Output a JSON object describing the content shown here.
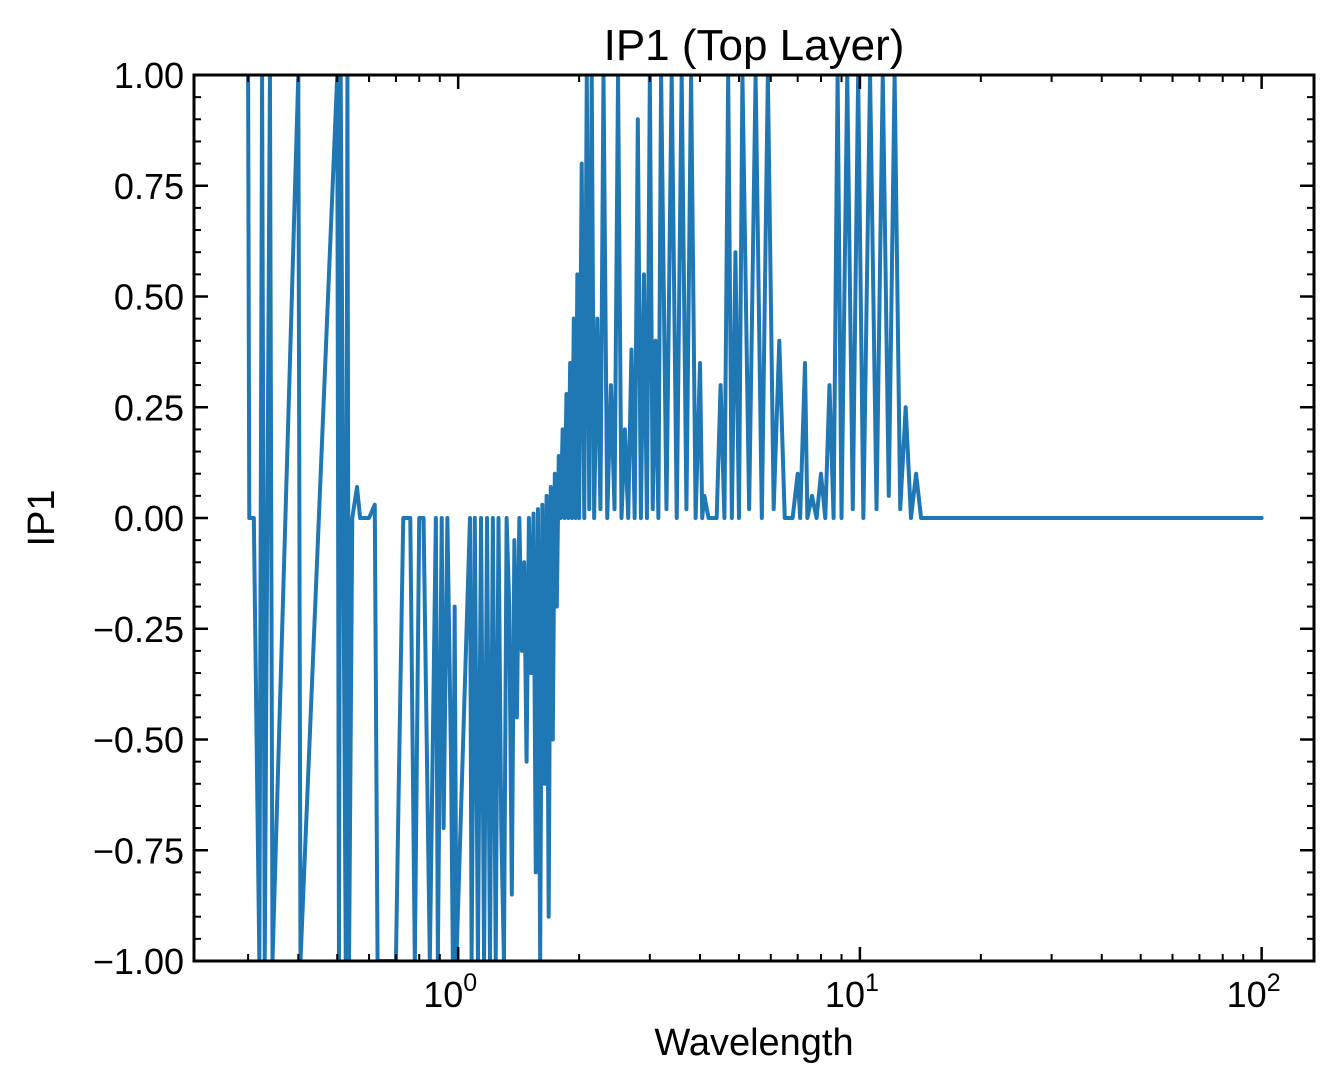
{
  "chart_data": {
    "type": "line",
    "title": "IP1 (Top Layer)",
    "xlabel": "Wavelength",
    "ylabel": "IP1",
    "x_scale": "log",
    "xlim": [
      0.22,
      135
    ],
    "ylim": [
      -1.0,
      1.0
    ],
    "grid": false,
    "legend": "none",
    "line_color": "#1f77b4",
    "x_ticks": [
      {
        "value": 1,
        "base": "10",
        "exp": "0"
      },
      {
        "value": 10,
        "base": "10",
        "exp": "1"
      },
      {
        "value": 100,
        "base": "10",
        "exp": "2"
      }
    ],
    "y_ticks": [
      {
        "value": 1.0,
        "label": "1.00"
      },
      {
        "value": 0.75,
        "label": "0.75"
      },
      {
        "value": 0.5,
        "label": "0.50"
      },
      {
        "value": 0.25,
        "label": "0.25"
      },
      {
        "value": 0.0,
        "label": "0.00"
      },
      {
        "value": -0.25,
        "label": "−0.25"
      },
      {
        "value": -0.5,
        "label": "−0.50"
      },
      {
        "value": -0.75,
        "label": "−0.75"
      },
      {
        "value": -1.0,
        "label": "−1.00"
      }
    ],
    "series": [
      {
        "values": [
          [
            0.3,
            1.0
          ],
          [
            0.302,
            0.0
          ],
          [
            0.31,
            0.0
          ],
          [
            0.32,
            -1.0
          ],
          [
            0.325,
            1.0
          ],
          [
            0.33,
            -1.0
          ],
          [
            0.34,
            1.0
          ],
          [
            0.345,
            -1.0
          ],
          [
            0.4,
            1.0
          ],
          [
            0.405,
            -1.0
          ],
          [
            0.5,
            1.0
          ],
          [
            0.505,
            -1.0
          ],
          [
            0.51,
            1.0
          ],
          [
            0.525,
            -1.0
          ],
          [
            0.53,
            1.0
          ],
          [
            0.535,
            -1.0
          ],
          [
            0.545,
            0.0
          ],
          [
            0.56,
            0.07
          ],
          [
            0.57,
            0.0
          ],
          [
            0.6,
            0.0
          ],
          [
            0.62,
            0.03
          ],
          [
            0.63,
            -1.0
          ],
          [
            0.7,
            -1.0
          ],
          [
            0.71,
            -0.65
          ],
          [
            0.73,
            0.0
          ],
          [
            0.76,
            0.0
          ],
          [
            0.78,
            -1.0
          ],
          [
            0.8,
            0.0
          ],
          [
            0.82,
            0.0
          ],
          [
            0.85,
            -1.0
          ],
          [
            0.88,
            0.0
          ],
          [
            0.89,
            -1.0
          ],
          [
            0.91,
            0.0
          ],
          [
            0.92,
            -0.7
          ],
          [
            0.94,
            0.0
          ],
          [
            0.96,
            -0.55
          ],
          [
            0.97,
            -1.0
          ],
          [
            0.98,
            -0.2
          ],
          [
            0.99,
            -1.0
          ],
          [
            1.07,
            0.0
          ],
          [
            1.08,
            -1.0
          ],
          [
            1.1,
            0.0
          ],
          [
            1.12,
            -1.0
          ],
          [
            1.14,
            0.0
          ],
          [
            1.16,
            -1.0
          ],
          [
            1.18,
            0.0
          ],
          [
            1.2,
            -1.0
          ],
          [
            1.22,
            0.0
          ],
          [
            1.24,
            -1.0
          ],
          [
            1.26,
            0.0
          ],
          [
            1.28,
            -0.7
          ],
          [
            1.3,
            -1.0
          ],
          [
            1.32,
            0.0
          ],
          [
            1.34,
            -0.2
          ],
          [
            1.36,
            -0.85
          ],
          [
            1.38,
            -0.05
          ],
          [
            1.4,
            -0.45
          ],
          [
            1.42,
            0.0
          ],
          [
            1.44,
            -0.3
          ],
          [
            1.46,
            -0.1
          ],
          [
            1.48,
            -0.55
          ],
          [
            1.5,
            0.0
          ],
          [
            1.52,
            -0.35
          ],
          [
            1.54,
            0.01
          ],
          [
            1.56,
            -0.8
          ],
          [
            1.58,
            0.02
          ],
          [
            1.6,
            -1.0
          ],
          [
            1.62,
            0.03
          ],
          [
            1.64,
            -0.6
          ],
          [
            1.66,
            0.05
          ],
          [
            1.68,
            -0.9
          ],
          [
            1.7,
            0.07
          ],
          [
            1.72,
            -0.5
          ],
          [
            1.74,
            0.1
          ],
          [
            1.76,
            -0.2
          ],
          [
            1.78,
            0.14
          ],
          [
            1.8,
            0.0
          ],
          [
            1.82,
            0.2
          ],
          [
            1.84,
            0.0
          ],
          [
            1.86,
            0.28
          ],
          [
            1.88,
            0.0
          ],
          [
            1.9,
            0.35
          ],
          [
            1.92,
            0.0
          ],
          [
            1.94,
            0.45
          ],
          [
            1.96,
            0.0
          ],
          [
            1.98,
            0.55
          ],
          [
            2.0,
            0.0
          ],
          [
            2.03,
            0.8
          ],
          [
            2.06,
            0.0
          ],
          [
            2.09,
            1.0
          ],
          [
            2.12,
            0.02
          ],
          [
            2.15,
            1.0
          ],
          [
            2.18,
            0.0
          ],
          [
            2.22,
            0.45
          ],
          [
            2.26,
            0.02
          ],
          [
            2.3,
            1.0
          ],
          [
            2.35,
            0.0
          ],
          [
            2.4,
            0.3
          ],
          [
            2.45,
            0.02
          ],
          [
            2.5,
            1.0
          ],
          [
            2.55,
            0.0
          ],
          [
            2.6,
            0.2
          ],
          [
            2.65,
            0.0
          ],
          [
            2.7,
            0.38
          ],
          [
            2.75,
            0.0
          ],
          [
            2.8,
            0.9
          ],
          [
            2.85,
            0.0
          ],
          [
            2.9,
            0.55
          ],
          [
            2.95,
            0.0
          ],
          [
            3.0,
            1.0
          ],
          [
            3.05,
            0.02
          ],
          [
            3.1,
            0.4
          ],
          [
            3.15,
            0.0
          ],
          [
            3.2,
            1.0
          ],
          [
            3.3,
            0.02
          ],
          [
            3.4,
            1.0
          ],
          [
            3.5,
            0.0
          ],
          [
            3.6,
            1.0
          ],
          [
            3.7,
            0.02
          ],
          [
            3.8,
            1.0
          ],
          [
            3.9,
            0.0
          ],
          [
            4.0,
            0.35
          ],
          [
            4.05,
            0.0
          ],
          [
            4.1,
            0.05
          ],
          [
            4.2,
            0.0
          ],
          [
            4.4,
            0.0
          ],
          [
            4.5,
            0.3
          ],
          [
            4.6,
            0.0
          ],
          [
            4.7,
            1.0
          ],
          [
            4.8,
            0.0
          ],
          [
            4.9,
            0.6
          ],
          [
            5.0,
            0.0
          ],
          [
            5.1,
            1.0
          ],
          [
            5.3,
            0.02
          ],
          [
            5.5,
            1.0
          ],
          [
            5.7,
            0.0
          ],
          [
            5.9,
            1.0
          ],
          [
            6.1,
            0.02
          ],
          [
            6.3,
            0.4
          ],
          [
            6.5,
            0.0
          ],
          [
            6.8,
            0.0
          ],
          [
            7.0,
            0.1
          ],
          [
            7.1,
            0.0
          ],
          [
            7.3,
            0.35
          ],
          [
            7.4,
            0.0
          ],
          [
            7.6,
            0.05
          ],
          [
            7.8,
            0.0
          ],
          [
            8.0,
            0.1
          ],
          [
            8.2,
            0.0
          ],
          [
            8.4,
            0.3
          ],
          [
            8.6,
            0.0
          ],
          [
            8.8,
            1.0
          ],
          [
            9.0,
            0.0
          ],
          [
            9.3,
            1.0
          ],
          [
            9.6,
            0.02
          ],
          [
            9.9,
            1.0
          ],
          [
            10.2,
            0.0
          ],
          [
            10.6,
            1.0
          ],
          [
            11.0,
            0.02
          ],
          [
            11.4,
            1.0
          ],
          [
            11.8,
            0.05
          ],
          [
            12.2,
            1.0
          ],
          [
            12.6,
            0.02
          ],
          [
            13.0,
            0.25
          ],
          [
            13.4,
            0.0
          ],
          [
            13.8,
            0.1
          ],
          [
            14.2,
            0.0
          ],
          [
            15.0,
            0.0
          ],
          [
            20.0,
            0.0
          ],
          [
            40.0,
            0.0
          ],
          [
            100.0,
            0.0
          ]
        ]
      }
    ]
  }
}
